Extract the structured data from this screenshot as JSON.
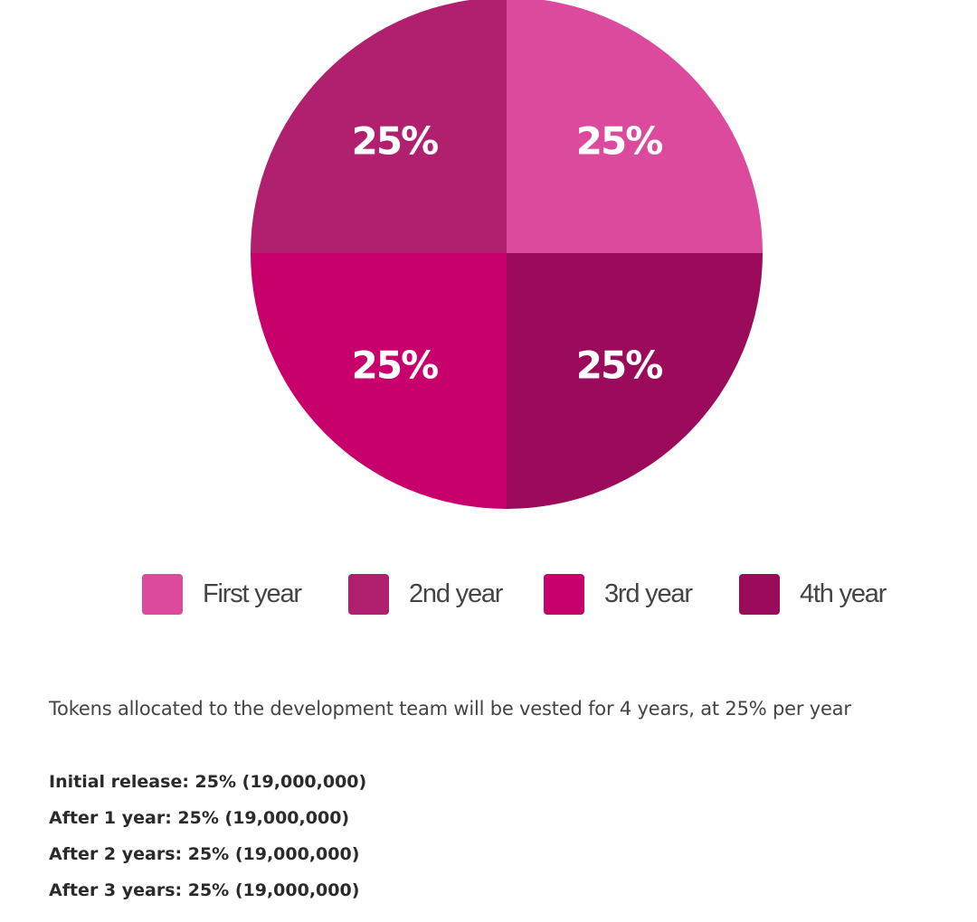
{
  "chart_data": {
    "type": "pie",
    "title": "",
    "categories": [
      "First year",
      "2nd year",
      "3rd year",
      "4th year"
    ],
    "values": [
      25,
      25,
      25,
      25
    ],
    "data_labels": [
      "25%",
      "25%",
      "25%",
      "25%"
    ],
    "colors": [
      "#db4a9c",
      "#b0206e",
      "#c8006b",
      "#9c0b5b"
    ],
    "legend_position": "bottom"
  },
  "legend": {
    "items": [
      {
        "label": "First year",
        "color": "#db4a9c"
      },
      {
        "label": "2nd year",
        "color": "#b0206e"
      },
      {
        "label": "3rd year",
        "color": "#c8006b"
      },
      {
        "label": "4th year",
        "color": "#9c0b5b"
      }
    ]
  },
  "description": "Tokens allocated to the development team will be vested for 4 years, at 25% per year",
  "schedule": [
    "Initial release: 25% (19,000,000)",
    "After 1 year: 25% (19,000,000)",
    "After 2 years: 25% (19,000,000)",
    "After 3 years: 25% (19,000,000)"
  ]
}
